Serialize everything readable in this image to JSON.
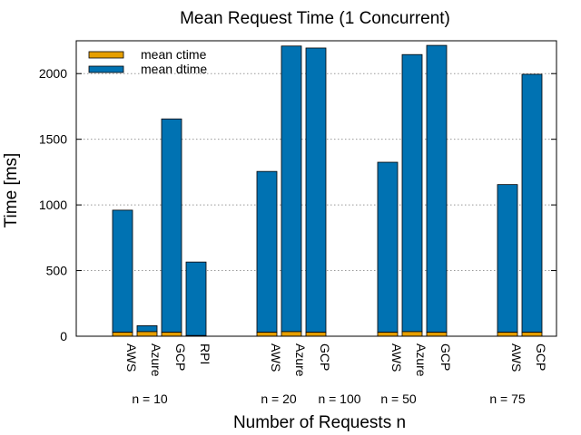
{
  "chart_data": {
    "type": "bar",
    "stacked": true,
    "title": "Mean Request Time (1 Concurrent)",
    "xlabel": "Number of Requests n",
    "ylabel": "Time [ms]",
    "ylim": [
      0,
      2250
    ],
    "yticks": [
      0,
      500,
      1000,
      1500,
      2000
    ],
    "grid": "horizontal-dotted",
    "legend_position": "top-left",
    "colors": {
      "mean ctime": "#e69f00",
      "mean dtime": "#0072b2"
    },
    "series_names": [
      "mean ctime",
      "mean dtime"
    ],
    "groups": [
      {
        "label": "n = 10",
        "bars": [
          {
            "category": "AWS",
            "ctime": 30,
            "dtime": 930
          },
          {
            "category": "Azure",
            "ctime": 35,
            "dtime": 45
          },
          {
            "category": "GCP",
            "ctime": 30,
            "dtime": 1625
          },
          {
            "category": "RPI",
            "ctime": 5,
            "dtime": 560
          }
        ]
      },
      {
        "label": "n = 20",
        "bars": [
          {
            "category": "AWS",
            "ctime": 30,
            "dtime": 1225
          },
          {
            "category": "Azure",
            "ctime": 35,
            "dtime": 2175
          }
        ]
      },
      {
        "label": "n = 100",
        "bars": [
          {
            "category": "GCP",
            "ctime": 30,
            "dtime": 2165
          }
        ]
      },
      {
        "label": "n = 50",
        "bars": [
          {
            "category": "AWS",
            "ctime": 30,
            "dtime": 1295
          },
          {
            "category": "Azure",
            "ctime": 35,
            "dtime": 2110
          },
          {
            "category": "GCP",
            "ctime": 30,
            "dtime": 2185
          }
        ]
      },
      {
        "label": "n = 75",
        "bars": [
          {
            "category": "AWS",
            "ctime": 30,
            "dtime": 1125
          },
          {
            "category": "GCP",
            "ctime": 30,
            "dtime": 1965
          }
        ]
      }
    ]
  }
}
